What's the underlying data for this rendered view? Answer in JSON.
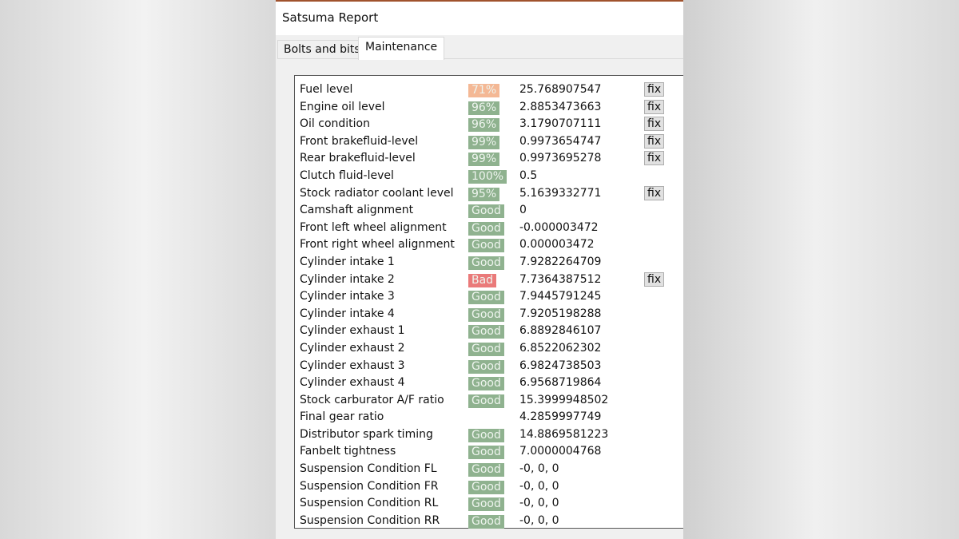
{
  "window": {
    "title": "Satsuma Report"
  },
  "tabs": [
    {
      "label": "Bolts and bits",
      "active": false
    },
    {
      "label": "Maintenance",
      "active": true
    }
  ],
  "colors": {
    "good": "#8fb28f",
    "warn": "#f4b895",
    "bad": "#ea7a7a"
  },
  "fix_label": "fix",
  "rows": [
    {
      "label": "Fuel level",
      "status": "71%",
      "status_type": "warn",
      "value": "25.768907547",
      "fix": true
    },
    {
      "label": "Engine oil level",
      "status": "96%",
      "status_type": "good",
      "value": "2.8853473663",
      "fix": true
    },
    {
      "label": "Oil condition",
      "status": "96%",
      "status_type": "good",
      "value": "3.1790707111",
      "fix": true
    },
    {
      "label": "Front brakefluid-level",
      "status": "99%",
      "status_type": "good",
      "value": "0.9973654747",
      "fix": true
    },
    {
      "label": "Rear brakefluid-level",
      "status": "99%",
      "status_type": "good",
      "value": "0.9973695278",
      "fix": true
    },
    {
      "label": "Clutch fluid-level",
      "status": "100%",
      "status_type": "good",
      "value": "0.5",
      "fix": false
    },
    {
      "label": "Stock radiator coolant level",
      "status": "95%",
      "status_type": "good",
      "value": "5.1639332771",
      "fix": true
    },
    {
      "label": "Camshaft alignment",
      "status": "Good",
      "status_type": "good",
      "value": "0",
      "fix": false
    },
    {
      "label": "Front left wheel alignment",
      "status": "Good",
      "status_type": "good",
      "value": "-0.000003472",
      "fix": false
    },
    {
      "label": "Front right wheel alignment",
      "status": "Good",
      "status_type": "good",
      "value": "0.000003472",
      "fix": false
    },
    {
      "label": "Cylinder intake 1",
      "status": "Good",
      "status_type": "good",
      "value": "7.9282264709",
      "fix": false
    },
    {
      "label": "Cylinder intake 2",
      "status": "Bad",
      "status_type": "bad",
      "value": "7.7364387512",
      "fix": true
    },
    {
      "label": "Cylinder intake 3",
      "status": "Good",
      "status_type": "good",
      "value": "7.9445791245",
      "fix": false
    },
    {
      "label": "Cylinder intake 4",
      "status": "Good",
      "status_type": "good",
      "value": "7.9205198288",
      "fix": false
    },
    {
      "label": "Cylinder exhaust 1",
      "status": "Good",
      "status_type": "good",
      "value": "6.8892846107",
      "fix": false
    },
    {
      "label": "Cylinder exhaust 2",
      "status": "Good",
      "status_type": "good",
      "value": "6.8522062302",
      "fix": false
    },
    {
      "label": "Cylinder exhaust 3",
      "status": "Good",
      "status_type": "good",
      "value": "6.9824738503",
      "fix": false
    },
    {
      "label": "Cylinder exhaust 4",
      "status": "Good",
      "status_type": "good",
      "value": "6.9568719864",
      "fix": false
    },
    {
      "label": "Stock carburator A/F ratio",
      "status": "Good",
      "status_type": "good",
      "value": "15.3999948502",
      "fix": false
    },
    {
      "label": "Final gear ratio",
      "status": "",
      "status_type": "none",
      "value": "4.2859997749",
      "fix": false
    },
    {
      "label": "Distributor spark timing",
      "status": "Good",
      "status_type": "good",
      "value": "14.8869581223",
      "fix": false
    },
    {
      "label": "Fanbelt tightness",
      "status": "Good",
      "status_type": "good",
      "value": "7.0000004768",
      "fix": false
    },
    {
      "label": "Suspension Condition FL",
      "status": "Good",
      "status_type": "good",
      "value": "-0, 0, 0",
      "fix": false
    },
    {
      "label": "Suspension Condition FR",
      "status": "Good",
      "status_type": "good",
      "value": "-0, 0, 0",
      "fix": false
    },
    {
      "label": "Suspension Condition RL",
      "status": "Good",
      "status_type": "good",
      "value": "-0, 0, 0",
      "fix": false
    },
    {
      "label": "Suspension Condition RR",
      "status": "Good",
      "status_type": "good",
      "value": "-0, 0, 0",
      "fix": false
    }
  ]
}
